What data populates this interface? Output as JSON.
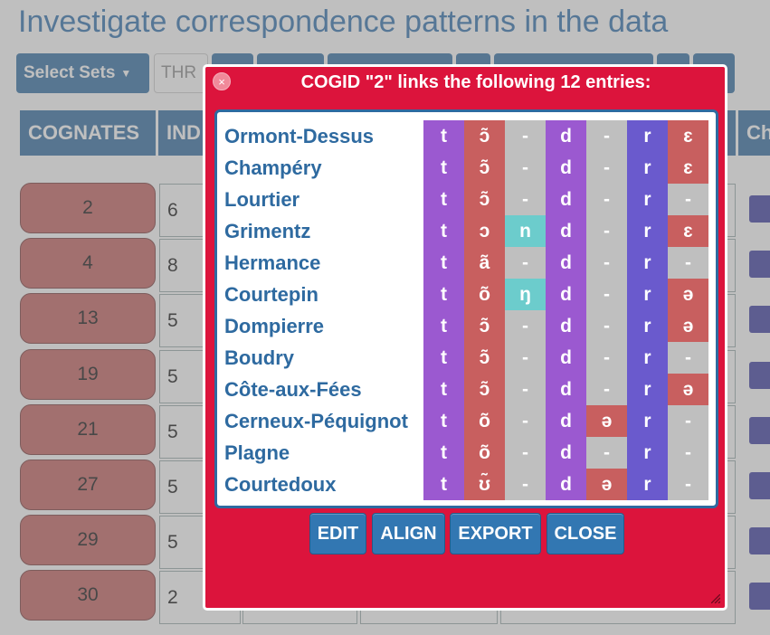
{
  "page": {
    "title": "Investigate correspondence patterns in the data",
    "select_sets_label": "Select Sets",
    "input_value": "THR",
    "col_cognates": "COGNATES",
    "col_index": "IND",
    "col_right": "Ch"
  },
  "background_rows": [
    {
      "cogid": "2",
      "count": "6"
    },
    {
      "cogid": "4",
      "count": "8"
    },
    {
      "cogid": "13",
      "count": "5"
    },
    {
      "cogid": "19",
      "count": "5"
    },
    {
      "cogid": "21",
      "count": "5"
    },
    {
      "cogid": "27",
      "count": "5"
    },
    {
      "cogid": "29",
      "count": "5"
    },
    {
      "cogid": "30",
      "count": "2"
    }
  ],
  "dialog": {
    "title": "COGID \"2\" links the following 12 entries:",
    "close_icon": "×",
    "buttons": {
      "edit": "EDIT",
      "align": "ALIGN",
      "export": "EXPORT",
      "close": "CLOSE"
    }
  },
  "segment_colors": {
    "consonant": "#9b59d0",
    "vowel": "#c85f5f",
    "gap": "#bfbfbf",
    "nasal": "#6ccccc",
    "liquid": "#6a5acd"
  },
  "alignment": [
    {
      "doculect": "Ormont-Dessus",
      "segments": [
        [
          "t",
          "consonant"
        ],
        [
          "ɔ̃",
          "vowel"
        ],
        [
          "-",
          "gap"
        ],
        [
          "d",
          "consonant"
        ],
        [
          "-",
          "gap"
        ],
        [
          "r",
          "liquid"
        ],
        [
          "ɛ",
          "vowel"
        ]
      ]
    },
    {
      "doculect": "Champéry",
      "segments": [
        [
          "t",
          "consonant"
        ],
        [
          "ɔ̃",
          "vowel"
        ],
        [
          "-",
          "gap"
        ],
        [
          "d",
          "consonant"
        ],
        [
          "-",
          "gap"
        ],
        [
          "r",
          "liquid"
        ],
        [
          "ɛ",
          "vowel"
        ]
      ]
    },
    {
      "doculect": "Lourtier",
      "segments": [
        [
          "t",
          "consonant"
        ],
        [
          "ɔ̃",
          "vowel"
        ],
        [
          "-",
          "gap"
        ],
        [
          "d",
          "consonant"
        ],
        [
          "-",
          "gap"
        ],
        [
          "r",
          "liquid"
        ],
        [
          "-",
          "gap"
        ]
      ]
    },
    {
      "doculect": "Grimentz",
      "segments": [
        [
          "t",
          "consonant"
        ],
        [
          "ɔ",
          "vowel"
        ],
        [
          "n",
          "nasal"
        ],
        [
          "d",
          "consonant"
        ],
        [
          "-",
          "gap"
        ],
        [
          "r",
          "liquid"
        ],
        [
          "ɛ",
          "vowel"
        ]
      ]
    },
    {
      "doculect": "Hermance",
      "segments": [
        [
          "t",
          "consonant"
        ],
        [
          "ã",
          "vowel"
        ],
        [
          "-",
          "gap"
        ],
        [
          "d",
          "consonant"
        ],
        [
          "-",
          "gap"
        ],
        [
          "r",
          "liquid"
        ],
        [
          "-",
          "gap"
        ]
      ]
    },
    {
      "doculect": "Courtepin",
      "segments": [
        [
          "t",
          "consonant"
        ],
        [
          "õ",
          "vowel"
        ],
        [
          "ŋ",
          "nasal"
        ],
        [
          "d",
          "consonant"
        ],
        [
          "-",
          "gap"
        ],
        [
          "r",
          "liquid"
        ],
        [
          "ə",
          "vowel"
        ]
      ]
    },
    {
      "doculect": "Dompierre",
      "segments": [
        [
          "t",
          "consonant"
        ],
        [
          "ɔ̃",
          "vowel"
        ],
        [
          "-",
          "gap"
        ],
        [
          "d",
          "consonant"
        ],
        [
          "-",
          "gap"
        ],
        [
          "r",
          "liquid"
        ],
        [
          "ə",
          "vowel"
        ]
      ]
    },
    {
      "doculect": "Boudry",
      "segments": [
        [
          "t",
          "consonant"
        ],
        [
          "ɔ̃",
          "vowel"
        ],
        [
          "-",
          "gap"
        ],
        [
          "d",
          "consonant"
        ],
        [
          "-",
          "gap"
        ],
        [
          "r",
          "liquid"
        ],
        [
          "-",
          "gap"
        ]
      ]
    },
    {
      "doculect": "Côte-aux-Fées",
      "segments": [
        [
          "t",
          "consonant"
        ],
        [
          "ɔ̃",
          "vowel"
        ],
        [
          "-",
          "gap"
        ],
        [
          "d",
          "consonant"
        ],
        [
          "-",
          "gap"
        ],
        [
          "r",
          "liquid"
        ],
        [
          "ə",
          "vowel"
        ]
      ]
    },
    {
      "doculect": "Cerneux-Péquignot",
      "segments": [
        [
          "t",
          "consonant"
        ],
        [
          "õ",
          "vowel"
        ],
        [
          "-",
          "gap"
        ],
        [
          "d",
          "consonant"
        ],
        [
          "ə",
          "vowel"
        ],
        [
          "r",
          "liquid"
        ],
        [
          "-",
          "gap"
        ]
      ]
    },
    {
      "doculect": "Plagne",
      "segments": [
        [
          "t",
          "consonant"
        ],
        [
          "õ",
          "vowel"
        ],
        [
          "-",
          "gap"
        ],
        [
          "d",
          "consonant"
        ],
        [
          "-",
          "gap"
        ],
        [
          "r",
          "liquid"
        ],
        [
          "-",
          "gap"
        ]
      ]
    },
    {
      "doculect": "Courtedoux",
      "segments": [
        [
          "t",
          "consonant"
        ],
        [
          "ʊ̃",
          "vowel"
        ],
        [
          "-",
          "gap"
        ],
        [
          "d",
          "consonant"
        ],
        [
          "ə",
          "vowel"
        ],
        [
          "r",
          "liquid"
        ],
        [
          "-",
          "gap"
        ]
      ]
    }
  ]
}
